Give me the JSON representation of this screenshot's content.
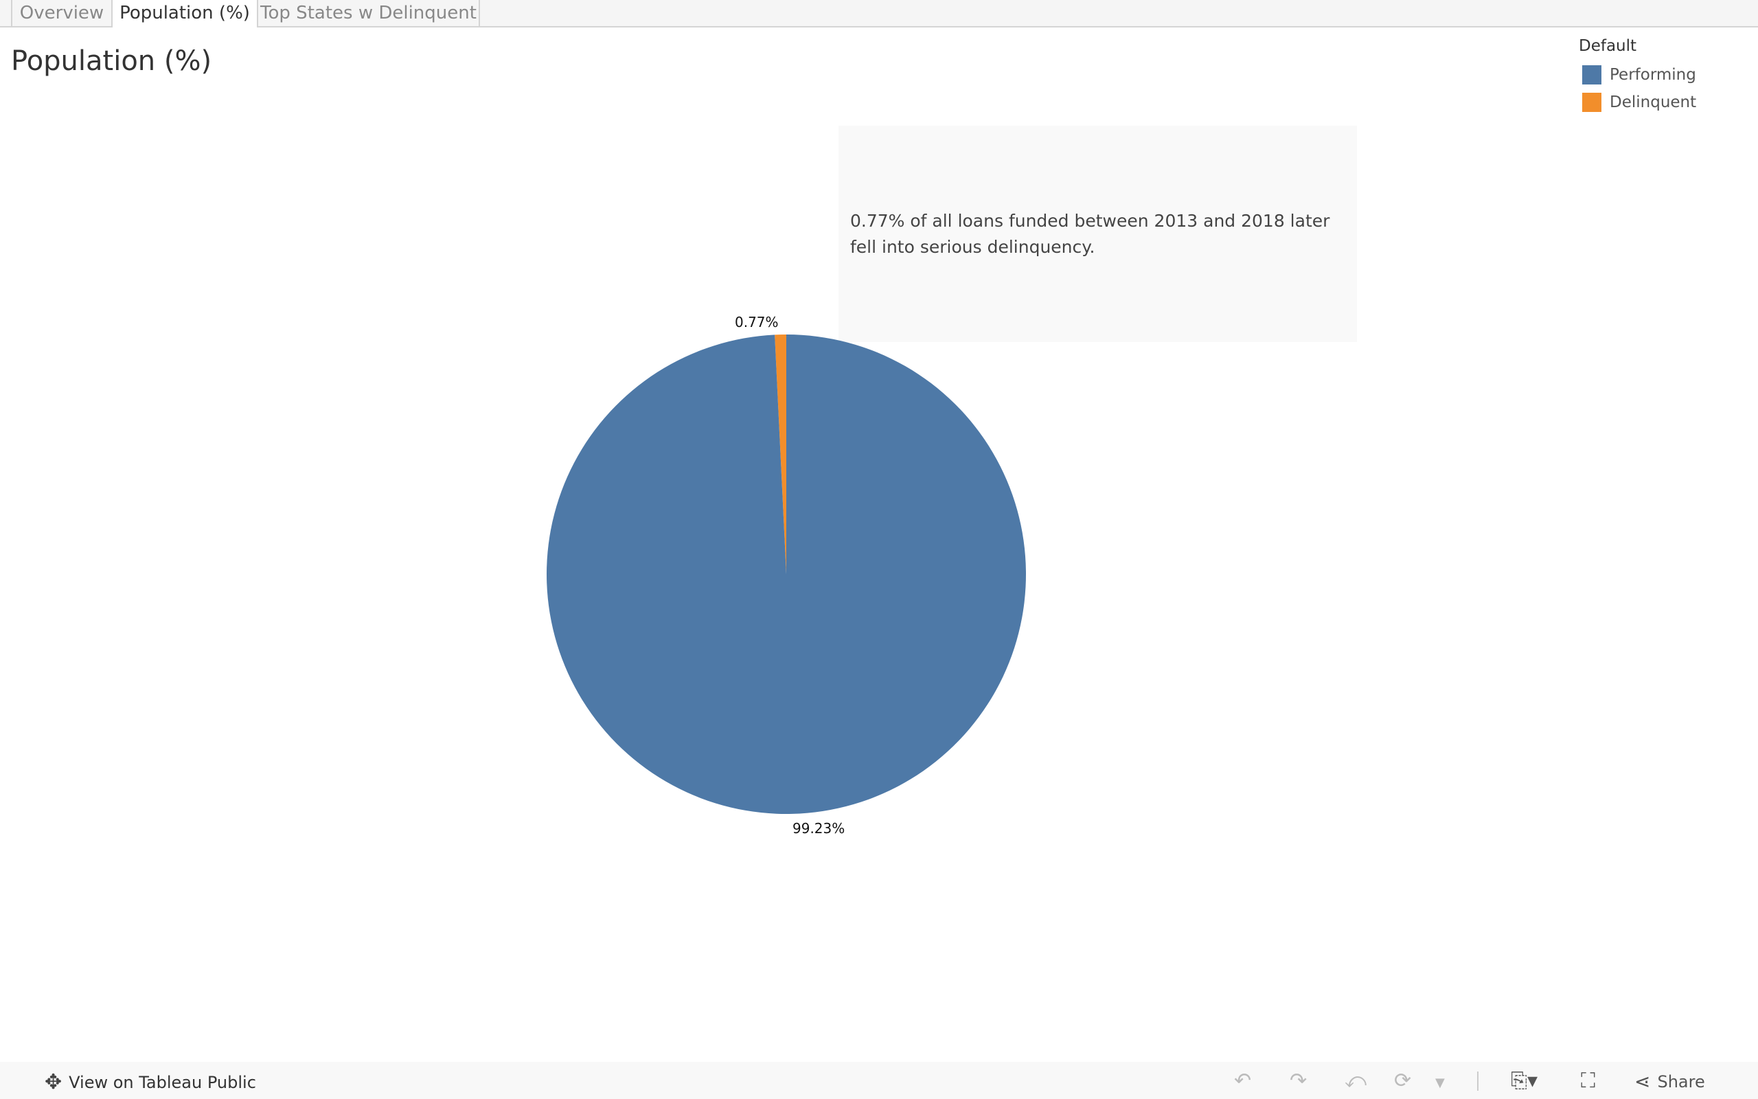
{
  "tabs": [
    {
      "label": "Overview"
    },
    {
      "label": "Population (%)",
      "active": true
    },
    {
      "label": "Top States w Delinquent"
    }
  ],
  "title": "Population (%)",
  "legend": {
    "title": "Default",
    "items": [
      {
        "label": "Performing",
        "color": "#4e79a7"
      },
      {
        "label": "Delinquent",
        "color": "#f28e2b"
      }
    ]
  },
  "annotation": "0.77% of all loans funded between 2013 and 2018 later fell into serious delinquency.",
  "chart_data": {
    "type": "pie",
    "slices": [
      {
        "label": "Delinquent",
        "value": 0.77,
        "display": "0.77%",
        "color": "#f28e2b"
      },
      {
        "label": "Performing",
        "value": 99.23,
        "display": "99.23%",
        "color": "#4e79a7"
      }
    ]
  },
  "footer": {
    "view_on": "View on Tableau Public",
    "share": "Share",
    "icons": [
      "undo-icon",
      "redo-icon",
      "revert-icon",
      "refresh-icon",
      "pause-dropdown-icon",
      "download-icon",
      "fullscreen-icon",
      "share-icon"
    ]
  }
}
